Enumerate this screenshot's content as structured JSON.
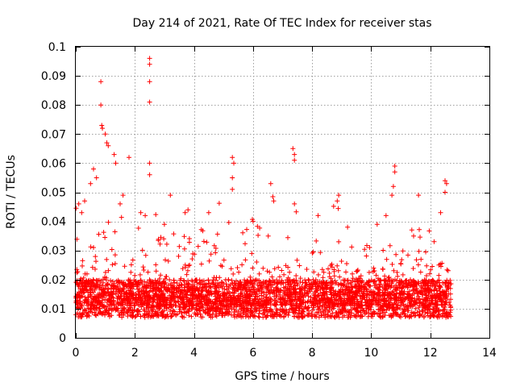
{
  "chart_data": {
    "type": "scatter",
    "title": "Day 214 of 2021, Rate Of TEC Index for receiver stas",
    "xlabel": "GPS time / hours",
    "ylabel": "ROTI / TECUs",
    "xlim": [
      0,
      14
    ],
    "ylim": [
      0,
      0.1
    ],
    "xticks": [
      0,
      2,
      4,
      6,
      8,
      10,
      12,
      14
    ],
    "xtick_labels": [
      "0",
      "2",
      "4",
      "6",
      "8",
      "10",
      "12",
      "14"
    ],
    "yticks": [
      0,
      0.01,
      0.02,
      0.03,
      0.04,
      0.05,
      0.06,
      0.07,
      0.08,
      0.09,
      0.1
    ],
    "ytick_labels": [
      "0",
      "0.01",
      "0.02",
      "0.03",
      "0.04",
      "0.05",
      "0.06",
      "0.07",
      "0.08",
      "0.09",
      "0.1"
    ],
    "grid": true,
    "marker": "+",
    "color": "#ff0000",
    "data_range_x": [
      0,
      12.7
    ],
    "dense_band_y": [
      0.007,
      0.02
    ],
    "series": [
      {
        "name": "ROTI",
        "points": [
          [
            0.85,
            0.088
          ],
          [
            0.85,
            0.08
          ],
          [
            0.88,
            0.073
          ],
          [
            0.9,
            0.072
          ],
          [
            1.05,
            0.067
          ],
          [
            1.1,
            0.066
          ],
          [
            1.0,
            0.07
          ],
          [
            1.3,
            0.063
          ],
          [
            1.35,
            0.06
          ],
          [
            0.6,
            0.058
          ],
          [
            0.7,
            0.055
          ],
          [
            0.5,
            0.053
          ],
          [
            1.8,
            0.062
          ],
          [
            2.5,
            0.096
          ],
          [
            2.5,
            0.094
          ],
          [
            2.5,
            0.088
          ],
          [
            2.5,
            0.081
          ],
          [
            2.5,
            0.06
          ],
          [
            2.5,
            0.056
          ],
          [
            3.2,
            0.049
          ],
          [
            3.8,
            0.044
          ],
          [
            4.5,
            0.043
          ],
          [
            5.3,
            0.062
          ],
          [
            5.35,
            0.06
          ],
          [
            5.3,
            0.055
          ],
          [
            5.3,
            0.051
          ],
          [
            6.6,
            0.053
          ],
          [
            6.7,
            0.047
          ],
          [
            7.35,
            0.065
          ],
          [
            7.4,
            0.063
          ],
          [
            7.4,
            0.061
          ],
          [
            7.4,
            0.046
          ],
          [
            8.9,
            0.049
          ],
          [
            8.85,
            0.047
          ],
          [
            8.2,
            0.042
          ],
          [
            10.8,
            0.059
          ],
          [
            10.8,
            0.057
          ],
          [
            10.75,
            0.052
          ],
          [
            10.7,
            0.049
          ],
          [
            11.6,
            0.049
          ],
          [
            12.5,
            0.054
          ],
          [
            12.55,
            0.053
          ],
          [
            12.5,
            0.05
          ],
          [
            0.1,
            0.046
          ],
          [
            0.2,
            0.043
          ],
          [
            0.3,
            0.047
          ],
          [
            1.6,
            0.049
          ],
          [
            1.5,
            0.046
          ],
          [
            2.2,
            0.043
          ],
          [
            2.35,
            0.042
          ],
          [
            3.0,
            0.039
          ],
          [
            3.7,
            0.043
          ],
          [
            6.0,
            0.04
          ],
          [
            9.2,
            0.038
          ],
          [
            10.2,
            0.039
          ],
          [
            10.5,
            0.042
          ],
          [
            12.35,
            0.043
          ]
        ]
      }
    ]
  }
}
